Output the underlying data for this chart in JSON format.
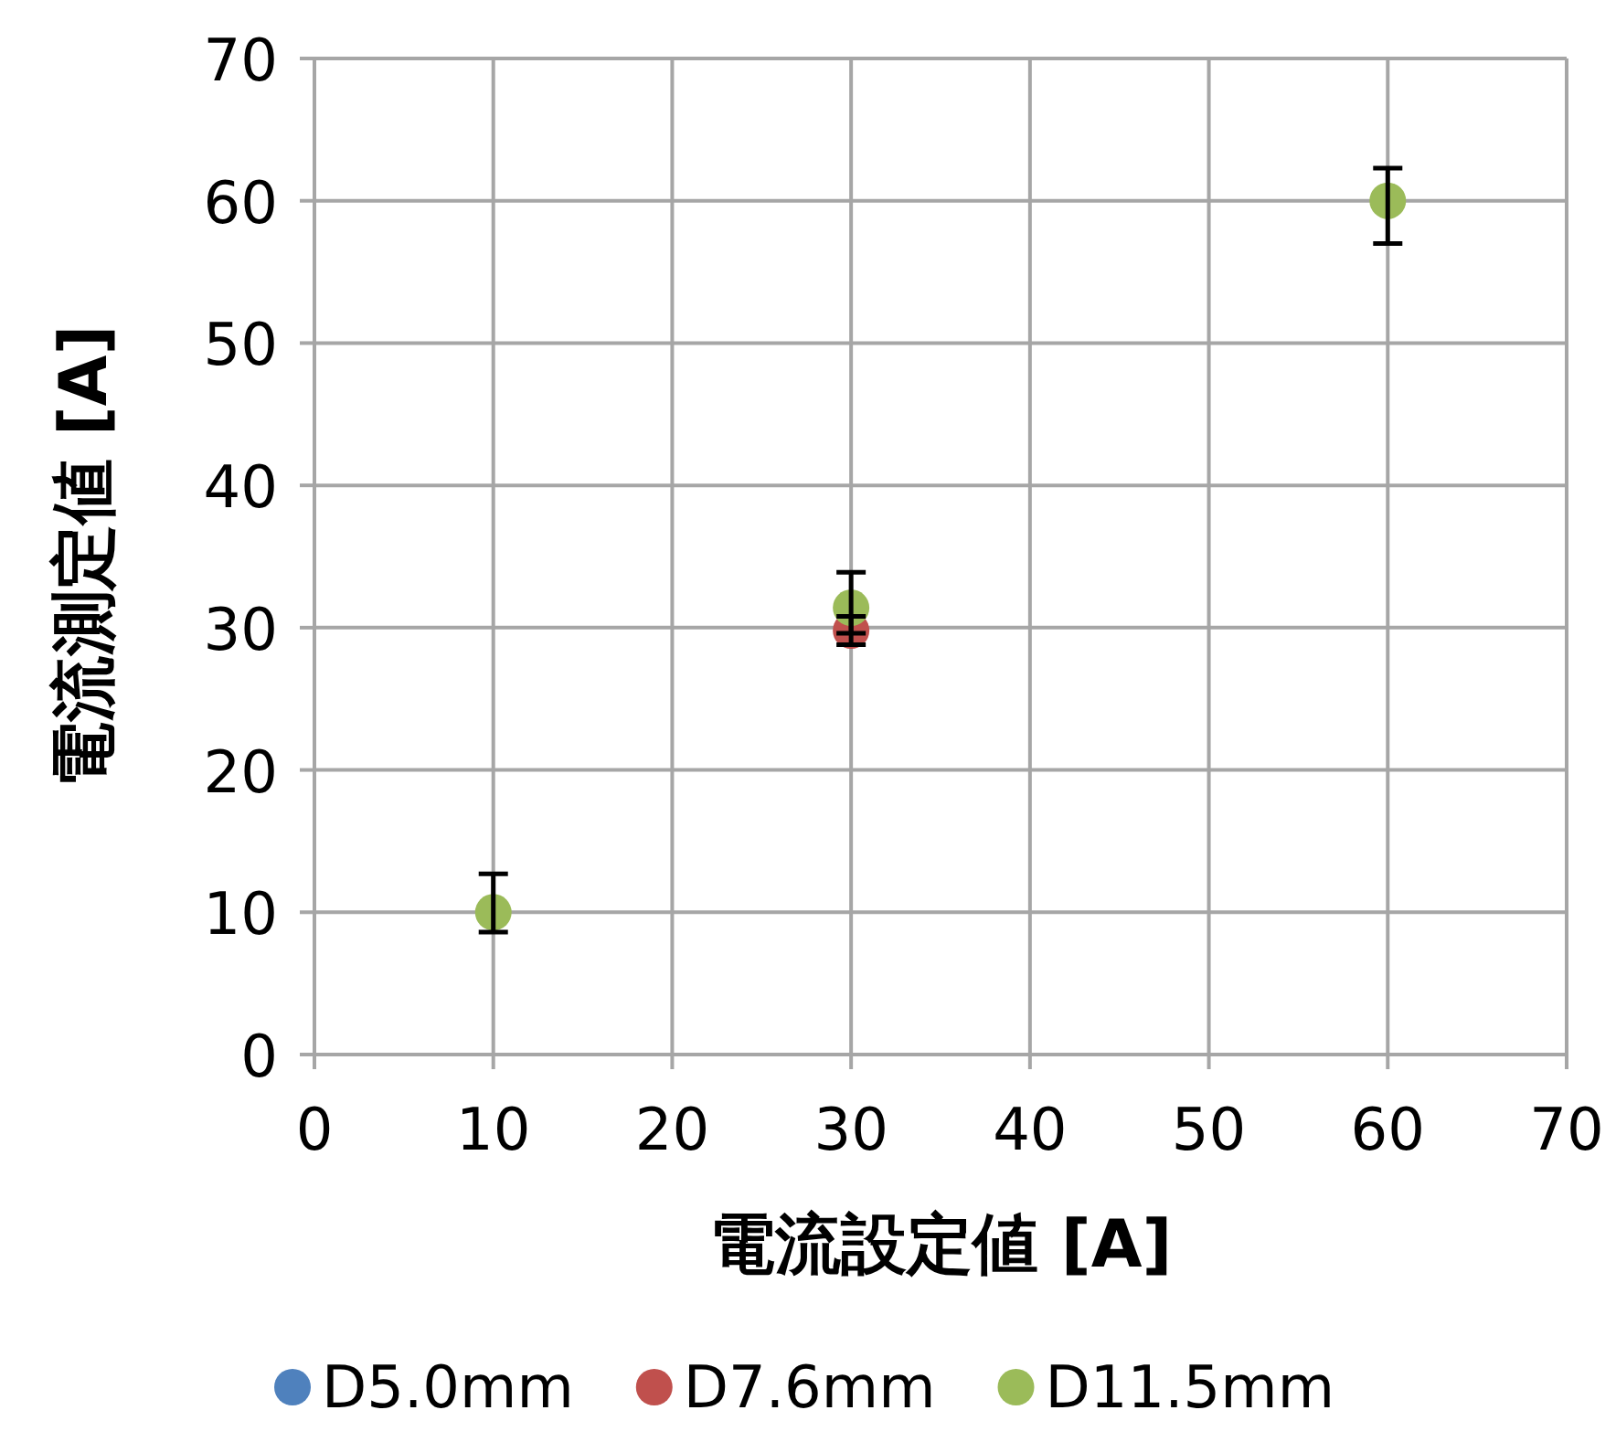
{
  "chart_data": {
    "type": "scatter",
    "xlabel": "電流設定値 [A]",
    "ylabel": "電流測定値 [A]",
    "xlim": [
      0,
      70
    ],
    "ylim": [
      0,
      70
    ],
    "xticks": [
      0,
      10,
      20,
      30,
      40,
      50,
      60,
      70
    ],
    "yticks": [
      0,
      10,
      20,
      30,
      40,
      50,
      60,
      70
    ],
    "grid": true,
    "legend": "bottom",
    "marker": "circle",
    "x": [
      10,
      30,
      60
    ],
    "series": [
      {
        "name": "D5.0mm",
        "color": "#4f81bd",
        "values": [
          null,
          null,
          null
        ]
      },
      {
        "name": "D7.6mm",
        "color": "#c0504d",
        "values": [
          null,
          29.8,
          null
        ],
        "errors": [
          null,
          [
            28.8,
            30.8
          ],
          null
        ]
      },
      {
        "name": "D11.5mm",
        "color": "#9bbb59",
        "values": [
          10,
          31.4,
          60
        ],
        "errors": [
          [
            8.6,
            12.7
          ],
          [
            29.6,
            33.9
          ],
          [
            57,
            62.3
          ]
        ]
      }
    ]
  }
}
